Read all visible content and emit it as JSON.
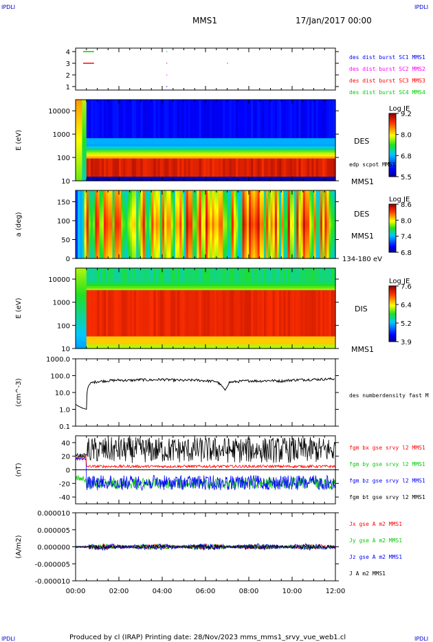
{
  "header": {
    "corner_left": "IPDLI",
    "corner_right": "IPDLI",
    "title": "MMS1",
    "date": "17/Jan/2017 00:00"
  },
  "footer": {
    "produced": "Produced by cl (IRAP)   Printing date: 28/Nov/2023   mms_mms1_srvy_vue_web1.cl",
    "corner_left": "IPDLI",
    "corner_right": "IPDLI"
  },
  "x_axis": {
    "ticks": [
      "00:00",
      "02:00",
      "04:00",
      "06:00",
      "08:00",
      "10:00",
      "12:00"
    ],
    "range_hours": [
      0,
      12
    ]
  },
  "colors": {
    "blue": "#0000ff",
    "magenta": "#ff00ff",
    "red": "#ff0000",
    "green": "#00cc00",
    "black": "#000000"
  },
  "chart_data": [
    {
      "type": "scatter",
      "name": "burst-flags",
      "ylabel": "",
      "yticks": [
        "1",
        "2",
        "3",
        "4"
      ],
      "ylim": [
        0.7,
        4.3
      ],
      "legend": [
        {
          "label": "des dist burst SC1 MMS1",
          "color": "#0000ff"
        },
        {
          "label": "des dist burst SC2 MMS2",
          "color": "#ff00ff"
        },
        {
          "label": "des dist burst SC3 MMS3",
          "color": "#ff0000"
        },
        {
          "label": "des dist burst SC4 MMS4",
          "color": "#00cc00"
        }
      ],
      "segments": [
        {
          "level": 4,
          "x": [
            0.35,
            0.85
          ],
          "color": "#00cc00"
        },
        {
          "level": 3,
          "x": [
            0.35,
            0.85
          ],
          "color": "#ff0000"
        },
        {
          "level": 4,
          "x": [
            4.2,
            4.23
          ],
          "color": "#00cc00"
        },
        {
          "level": 3,
          "x": [
            4.2,
            4.23
          ],
          "color": "#ff0000"
        },
        {
          "level": 2,
          "x": [
            4.2,
            4.23
          ],
          "color": "#ff00ff"
        },
        {
          "level": 3,
          "x": [
            7.0,
            7.03
          ],
          "color": "#ff0000"
        },
        {
          "level": 1,
          "x": [
            4.2,
            4.23
          ],
          "color": "#0000ff"
        }
      ]
    },
    {
      "type": "heatmap",
      "name": "des-energy-spectrogram",
      "ylabel": "E (eV)",
      "yscale": "log",
      "yticks": [
        "10",
        "100",
        "1000",
        "10000"
      ],
      "ylim": [
        10,
        30000
      ],
      "right_labels": [
        "DES",
        "edp scpot MMS1",
        "MMS1"
      ],
      "colorbar": {
        "title": "Log JE",
        "ticks": [
          "9.2",
          "8.0",
          "6.8",
          "5.5"
        ],
        "range": [
          5.5,
          9.2
        ]
      }
    },
    {
      "type": "heatmap",
      "name": "des-pitch-angle",
      "ylabel": "a (deg)",
      "yticks": [
        "0",
        "50",
        "100",
        "150"
      ],
      "ylim": [
        0,
        180
      ],
      "right_labels": [
        "DES",
        "MMS1",
        "134-180 eV"
      ],
      "colorbar": {
        "title": "Log JE",
        "ticks": [
          "8.6",
          "8.0",
          "7.4",
          "6.8"
        ],
        "range": [
          6.8,
          8.6
        ]
      }
    },
    {
      "type": "heatmap",
      "name": "dis-energy-spectrogram",
      "ylabel": "E (eV)",
      "yscale": "log",
      "yticks": [
        "10",
        "100",
        "1000",
        "10000"
      ],
      "ylim": [
        10,
        30000
      ],
      "right_labels": [
        "DIS",
        "MMS1"
      ],
      "colorbar": {
        "title": "Log JE",
        "ticks": [
          "7.6",
          "6.4",
          "5.2",
          "3.9"
        ],
        "range": [
          3.9,
          7.6
        ]
      }
    },
    {
      "type": "line",
      "name": "density",
      "ylabel": "(cm^-3)",
      "yscale": "log",
      "yticks": [
        "0.1",
        "1.0",
        "10.0",
        "100.0",
        "1000.0"
      ],
      "ylim": [
        0.1,
        1000
      ],
      "legend": [
        {
          "label": "des numberdensity fast M",
          "color": "#000000"
        }
      ],
      "series": [
        {
          "name": "des numberdensity fast M",
          "x": [
            0.0,
            0.1,
            0.2,
            0.3,
            0.4,
            0.5,
            0.55,
            0.6,
            0.7,
            0.8,
            1.0,
            1.5,
            2.0,
            2.5,
            3.0,
            3.5,
            4.0,
            4.5,
            5.0,
            5.5,
            6.0,
            6.5,
            6.8,
            6.9,
            7.0,
            7.1,
            7.5,
            8.0,
            8.5,
            9.0,
            9.5,
            10.0,
            10.5,
            11.0,
            11.5,
            12.0
          ],
          "values": [
            2.0,
            1.6,
            1.4,
            1.2,
            1.1,
            1.0,
            15,
            25,
            35,
            40,
            45,
            50,
            55,
            52,
            58,
            55,
            60,
            55,
            52,
            55,
            50,
            45,
            20,
            12,
            25,
            40,
            45,
            50,
            48,
            52,
            48,
            55,
            58,
            60,
            62,
            65
          ]
        }
      ]
    },
    {
      "type": "line",
      "name": "magnetic-field",
      "ylabel": "(nT)",
      "yticks": [
        "-40",
        "-20",
        "0",
        "20",
        "40"
      ],
      "ylim": [
        -50,
        50
      ],
      "legend": [
        {
          "label": "fgm bx gse srvy l2 MMS1",
          "color": "#ff0000"
        },
        {
          "label": "fgm by gse srvy l2 MMS1",
          "color": "#00cc00"
        },
        {
          "label": "fgm bz gse srvy l2 MMS1",
          "color": "#0000ff"
        },
        {
          "label": "fgm bt gse srvy l2 MMS1",
          "color": "#000000"
        }
      ]
    },
    {
      "type": "line",
      "name": "current-density",
      "ylabel": "(A/m2)",
      "yticks": [
        "-0.000010",
        "-0.000005",
        "0.000000",
        "0.000005",
        "0.000010"
      ],
      "ylim": [
        -1e-05,
        1e-05
      ],
      "legend": [
        {
          "label": "Jx gse A m2 MMS1",
          "color": "#ff0000"
        },
        {
          "label": "Jy gse A m2 MMS1",
          "color": "#00cc00"
        },
        {
          "label": "Jz gse A m2 MMS1",
          "color": "#0000ff"
        },
        {
          "label": "J A m2 MMS1",
          "color": "#000000"
        }
      ]
    }
  ]
}
